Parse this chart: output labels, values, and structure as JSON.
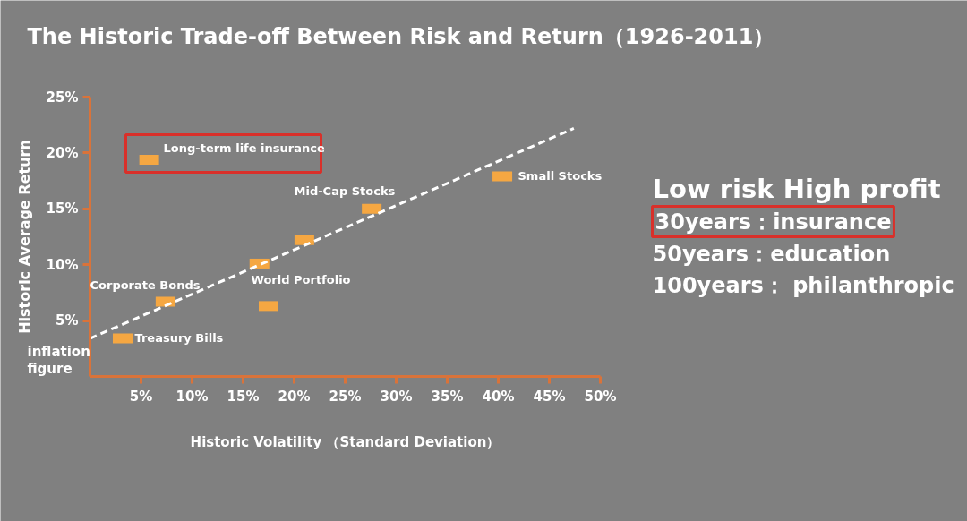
{
  "chart_data": {
    "type": "scatter",
    "title": "The Historic Trade-off Between Risk and Return（1926-2011）",
    "xlabel": "Historic Volatility （Standard Deviation）",
    "ylabel": "Historic Average Return",
    "xlim": [
      0,
      50
    ],
    "ylim": [
      0,
      25
    ],
    "xticks": [
      {
        "value": 5,
        "label": "5%"
      },
      {
        "value": 10,
        "label": "10%"
      },
      {
        "value": 15,
        "label": "15%"
      },
      {
        "value": 20,
        "label": "20%"
      },
      {
        "value": 25,
        "label": "25%"
      },
      {
        "value": 30,
        "label": "30%"
      },
      {
        "value": 35,
        "label": "35%"
      },
      {
        "value": 40,
        "label": "40%"
      },
      {
        "value": 45,
        "label": "45%"
      },
      {
        "value": 50,
        "label": "50%"
      }
    ],
    "yticks": [
      {
        "value": 5,
        "label": "5%"
      },
      {
        "value": 10,
        "label": "10%"
      },
      {
        "value": 15,
        "label": "15%"
      },
      {
        "value": 20,
        "label": "20%"
      },
      {
        "value": 25,
        "label": "25%"
      }
    ],
    "grid": false,
    "series": [
      {
        "type": "scatter",
        "marker": "square",
        "color": "#f5a742",
        "x": [
          5.8,
          3.2,
          7.4,
          16.6,
          17.5,
          21.0,
          27.6,
          40.4
        ],
        "values": [
          19.4,
          3.4,
          6.7,
          10.1,
          6.3,
          12.2,
          15.0,
          17.9
        ]
      },
      {
        "type": "line",
        "color": "#ffffff",
        "line_style": "dashed",
        "x": [
          0,
          47.4
        ],
        "values": [
          3.4,
          22.2
        ]
      }
    ],
    "annotations": [
      "Long-term life insurance",
      "Treasury Bills",
      "Corporate Bonds",
      "World Portfolio",
      "Mid-Cap Stocks",
      "Small Stocks",
      "inflation",
      "figure",
      "Low risk High profit",
      "30years：insurance",
      "50years：education",
      "100years： philanthropic"
    ]
  }
}
